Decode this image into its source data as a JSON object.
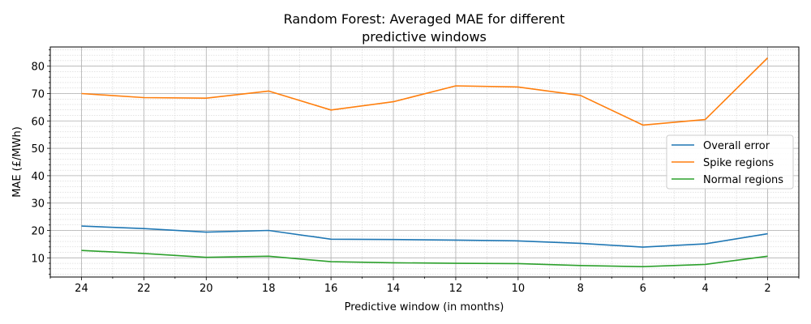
{
  "chart_data": {
    "type": "line",
    "title_line1": "Random Forest: Averaged MAE for different",
    "title_line2": "predictive windows",
    "xlabel": "Predictive window (in months)",
    "ylabel": "MAE (£/MWh)",
    "x": [
      24,
      22,
      20,
      18,
      16,
      14,
      12,
      10,
      8,
      6,
      4,
      2
    ],
    "x_inverted": true,
    "xlim": [
      25,
      1
    ],
    "ylim": [
      3,
      87
    ],
    "x_ticks": [
      24,
      22,
      20,
      18,
      16,
      14,
      12,
      10,
      8,
      6,
      4,
      2
    ],
    "y_ticks": [
      10,
      20,
      30,
      40,
      50,
      60,
      70,
      80
    ],
    "grid": "major and minor",
    "legend_position": "center-right",
    "series": [
      {
        "name": "Overall error",
        "color": "#1f77b4",
        "values": [
          21.6,
          20.7,
          19.4,
          20.0,
          16.8,
          16.7,
          16.5,
          16.2,
          15.3,
          13.9,
          15.1,
          18.8
        ]
      },
      {
        "name": "Spike regions",
        "color": "#ff7f0e",
        "values": [
          70.0,
          68.5,
          68.3,
          70.9,
          64.0,
          67.0,
          72.8,
          72.4,
          69.3,
          58.5,
          60.5,
          83.0
        ]
      },
      {
        "name": "Normal regions",
        "color": "#2ca02c",
        "values": [
          12.7,
          11.6,
          10.2,
          10.6,
          8.6,
          8.2,
          8.0,
          7.9,
          7.2,
          6.8,
          7.6,
          10.6
        ]
      }
    ]
  }
}
